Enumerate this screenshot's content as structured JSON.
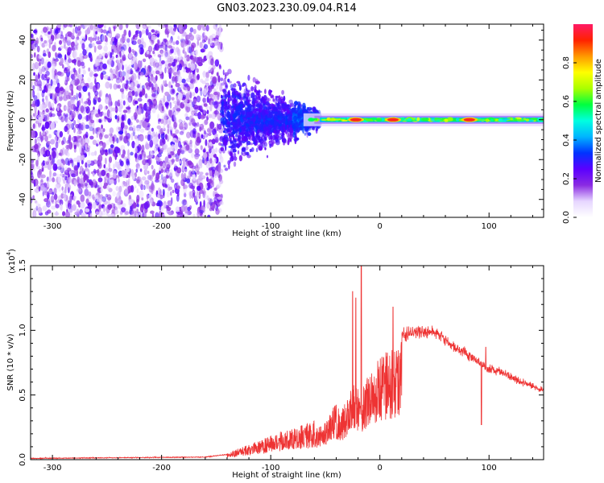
{
  "title": "GN03.2023.230.09.04.R14",
  "chart_data": [
    {
      "type": "heatmap",
      "xlabel": "Height of straight line (km)",
      "ylabel": "Frequency (Hz)",
      "xlim": [
        -320,
        150
      ],
      "ylim": [
        -49,
        48
      ],
      "x_ticks": [
        -300,
        -200,
        -100,
        0,
        100
      ],
      "x_tick_labels": [
        "-300",
        "-200",
        "-100",
        "0",
        "100"
      ],
      "y_ticks": [
        -40,
        -20,
        0,
        20,
        40
      ],
      "y_tick_labels": [
        "-40",
        "-20",
        "0",
        "20",
        "40"
      ],
      "colorbar": {
        "label": "Normalized spectral amplitude",
        "range": [
          0,
          1
        ],
        "ticks": [
          0.0,
          0.2,
          0.4,
          0.6,
          0.8
        ],
        "tick_labels": [
          "0.0",
          "0.2",
          "0.4",
          "0.6",
          "0.8"
        ],
        "colormap": [
          "#ffffff",
          "#e6d6ff",
          "#8a2be2",
          "#5b00ff",
          "#0033ff",
          "#00b4ff",
          "#00ffe0",
          "#00ff40",
          "#aaff00",
          "#ffff00",
          "#ff9900",
          "#ff2200",
          "#ff1a66"
        ]
      },
      "description_regions": [
        {
          "x_range": [
            -320,
            -145
          ],
          "pattern": "broadband noise"
        },
        {
          "x_range": [
            -145,
            -60
          ],
          "pattern": "converging signal"
        },
        {
          "x_range": [
            -60,
            150
          ],
          "pattern": "narrow line near 0 Hz"
        }
      ],
      "hotspots_x": [
        -22,
        12,
        82
      ]
    },
    {
      "type": "line",
      "xlabel": "Height of straight line (km)",
      "ylabel": "SNR (10 * v/v)",
      "scale_label": "(x10",
      "scale_exp": "4",
      "xlim": [
        -320,
        150
      ],
      "ylim": [
        0,
        1.5
      ],
      "x_ticks": [
        -300,
        -200,
        -100,
        0,
        100
      ],
      "x_tick_labels": [
        "-300",
        "-200",
        "-100",
        "0",
        "100"
      ],
      "y_ticks": [
        0.0,
        0.5,
        1.0,
        1.5
      ],
      "y_tick_labels": [
        "0.0",
        "0.5",
        "1.0",
        "1.5"
      ],
      "series": [
        {
          "color": "#ee3333",
          "envelope_x": [
            -320,
            -160,
            -140,
            -125,
            -110,
            -100,
            -90,
            -80,
            -70,
            -60,
            -50,
            -45,
            -40,
            -35,
            -30,
            -25,
            -22,
            -18,
            -15,
            -12,
            -8,
            -5,
            0,
            5,
            10,
            15,
            20,
            30,
            40,
            50,
            60,
            70,
            80,
            90,
            95,
            100,
            110,
            120,
            130,
            140,
            150
          ],
          "envelope_y": [
            0.01,
            0.02,
            0.04,
            0.08,
            0.12,
            0.15,
            0.18,
            0.2,
            0.22,
            0.25,
            0.3,
            0.4,
            0.45,
            0.4,
            0.5,
            0.6,
            0.65,
            0.55,
            0.6,
            0.7,
            0.75,
            0.8,
            0.85,
            0.88,
            0.9,
            0.93,
            0.96,
            0.98,
            1.0,
            0.98,
            0.92,
            0.86,
            0.82,
            0.76,
            0.72,
            0.7,
            0.68,
            0.64,
            0.6,
            0.57,
            0.53
          ],
          "spikes": [
            {
              "x": -25,
              "y": 1.3
            },
            {
              "x": -22,
              "y": 1.25
            },
            {
              "x": -17,
              "y": 1.52
            },
            {
              "x": 12,
              "y": 1.18
            },
            {
              "x": 97,
              "y": 0.87
            },
            {
              "x": 93,
              "y": 0.27
            }
          ]
        }
      ]
    }
  ]
}
